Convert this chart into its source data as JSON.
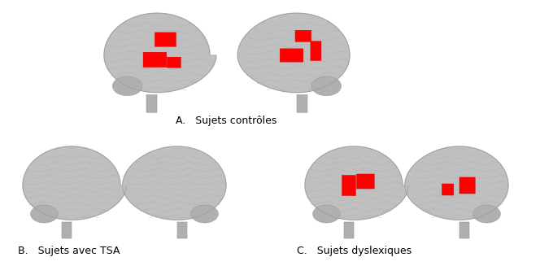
{
  "title_A": "A.   Sujets contrôles",
  "title_B": "B.   Sujets avec TSA",
  "title_C": "C.   Sujets dyslexiques",
  "bg_color": "#ffffff",
  "text_color": "#000000",
  "font_size": 9,
  "fig_width": 6.64,
  "fig_height": 3.43,
  "brain_base": "#c0bfbf",
  "brain_mid": "#b0b0b0",
  "brain_dark": "#989898",
  "brain_light": "#d8d8d8",
  "sulci_color": "#aaaaaa",
  "stem_color": "#b0aeae",
  "act_color": "#ff0000",
  "act_edge": "#cc0000"
}
